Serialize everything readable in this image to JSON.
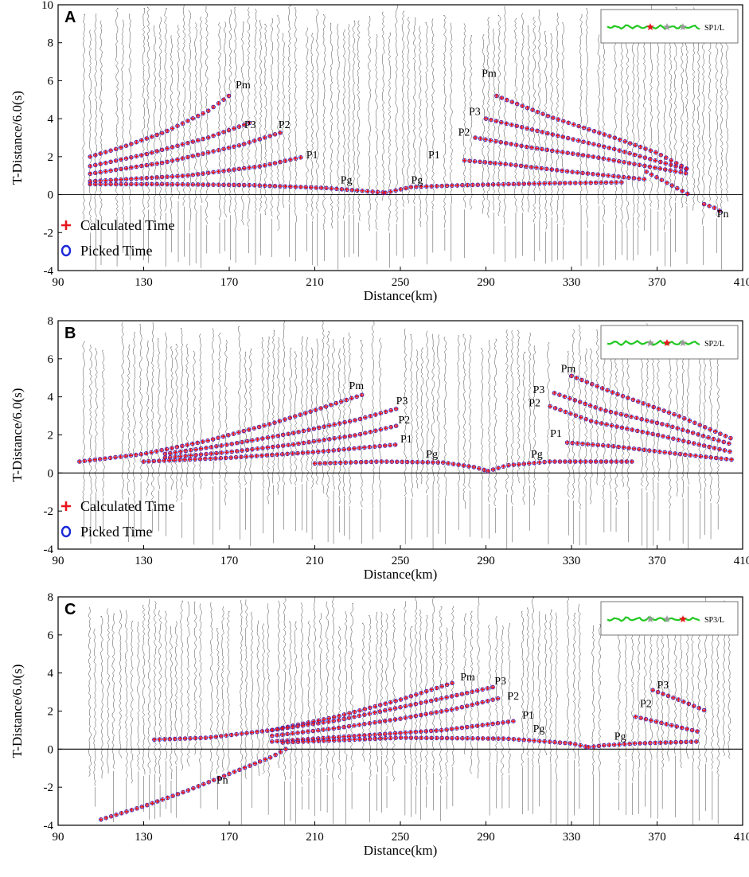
{
  "figure": {
    "colors": {
      "calculated": "#e8141c",
      "picked": "#1a28d8",
      "trace": "#333333",
      "inset_line": "#22c822",
      "star_gray": "#9a9a9a",
      "star_red": "#e8141c"
    }
  },
  "chart_data": [
    {
      "type": "scatter",
      "panel_label": "A",
      "xlabel": "Distance(km)",
      "ylabel": "T-Distance/6.0(s)",
      "xlim": [
        90,
        410
      ],
      "ylim": [
        -4,
        10
      ],
      "xticks": [
        90,
        130,
        170,
        210,
        250,
        290,
        330,
        370,
        410
      ],
      "yticks": [
        -4,
        -2,
        0,
        2,
        4,
        6,
        8,
        10
      ],
      "legend": {
        "calculated": "Calculated Time",
        "picked": "Picked Time",
        "position": "lower-left"
      },
      "inset": {
        "label": "SP1/L",
        "shot_index": 0
      },
      "shot_km": 243,
      "phase_curves": [
        {
          "name": "Pm",
          "x": [
            105,
            120,
            140,
            160,
            171
          ],
          "y": [
            2.0,
            2.5,
            3.3,
            4.4,
            5.3
          ]
        },
        {
          "name": "P3",
          "x": [
            105,
            130,
            160,
            180
          ],
          "y": [
            1.5,
            2.1,
            3.0,
            3.8
          ]
        },
        {
          "name": "P2",
          "x": [
            105,
            140,
            175,
            195
          ],
          "y": [
            1.1,
            1.7,
            2.6,
            3.3
          ]
        },
        {
          "name": "P1",
          "x": [
            105,
            150,
            185,
            205
          ],
          "y": [
            0.7,
            1.0,
            1.5,
            2.0
          ]
        },
        {
          "name": "Pg",
          "x": [
            105,
            140,
            180,
            215,
            232,
            243
          ],
          "y": [
            0.55,
            0.55,
            0.5,
            0.35,
            0.2,
            0.1
          ]
        },
        {
          "name": "Pg",
          "x": [
            243,
            255,
            280,
            320,
            355
          ],
          "y": [
            0.1,
            0.4,
            0.5,
            0.6,
            0.65
          ]
        },
        {
          "name": "P1",
          "x": [
            280,
            300,
            330,
            365
          ],
          "y": [
            1.8,
            1.6,
            1.2,
            0.8
          ]
        },
        {
          "name": "P2",
          "x": [
            285,
            310,
            340,
            365,
            385
          ],
          "y": [
            3.0,
            2.5,
            2.0,
            1.5,
            1.1
          ]
        },
        {
          "name": "P3",
          "x": [
            290,
            320,
            350,
            385
          ],
          "y": [
            4.0,
            3.2,
            2.4,
            1.3
          ]
        },
        {
          "name": "Pm",
          "x": [
            295,
            320,
            350,
            370,
            385
          ],
          "y": [
            5.2,
            4.1,
            3.0,
            2.2,
            1.3
          ]
        },
        {
          "name": "Pn",
          "x": [
            365,
            375,
            385
          ],
          "y": [
            1.2,
            0.6,
            0.0
          ]
        },
        {
          "name": "Pn",
          "x": [
            392,
            397,
            400
          ],
          "y": [
            -0.5,
            -0.7,
            -0.9
          ]
        }
      ],
      "phase_labels": [
        {
          "text": "Pm",
          "x": 173,
          "y": 5.6
        },
        {
          "text": "P3",
          "x": 177,
          "y": 3.5
        },
        {
          "text": "P2",
          "x": 193,
          "y": 3.5
        },
        {
          "text": "P1",
          "x": 206,
          "y": 1.9
        },
        {
          "text": "Pg",
          "x": 222,
          "y": 0.6
        },
        {
          "text": "Pg",
          "x": 255,
          "y": 0.6
        },
        {
          "text": "Pm",
          "x": 288,
          "y": 6.2
        },
        {
          "text": "P3",
          "x": 282,
          "y": 4.2
        },
        {
          "text": "P2",
          "x": 277,
          "y": 3.1
        },
        {
          "text": "P1",
          "x": 263,
          "y": 1.9
        },
        {
          "text": "Pn",
          "x": 398,
          "y": -1.2
        }
      ]
    },
    {
      "type": "scatter",
      "panel_label": "B",
      "xlabel": "Distance(km)",
      "ylabel": "T-Distance/6.0(s)",
      "xlim": [
        90,
        410
      ],
      "ylim": [
        -4,
        8
      ],
      "xticks": [
        90,
        130,
        170,
        210,
        250,
        290,
        330,
        370,
        410
      ],
      "yticks": [
        -4,
        -2,
        0,
        2,
        4,
        6,
        8
      ],
      "legend": {
        "calculated": "Calculated Time",
        "picked": "Picked Time",
        "position": "lower-left"
      },
      "inset": {
        "label": "SP2/L",
        "shot_index": 1
      },
      "shot_km": 291,
      "phase_curves": [
        {
          "name": "Pm",
          "x": [
            100,
            130,
            160,
            190,
            210,
            232
          ],
          "y": [
            0.6,
            1.0,
            1.7,
            2.6,
            3.3,
            4.1
          ]
        },
        {
          "name": "P3",
          "x": [
            140,
            170,
            200,
            230,
            249
          ],
          "y": [
            1.0,
            1.5,
            2.1,
            2.8,
            3.4
          ]
        },
        {
          "name": "P2",
          "x": [
            140,
            170,
            200,
            230,
            249
          ],
          "y": [
            0.8,
            1.1,
            1.5,
            2.0,
            2.5
          ]
        },
        {
          "name": "P1",
          "x": [
            130,
            170,
            210,
            249
          ],
          "y": [
            0.6,
            0.8,
            1.1,
            1.5
          ]
        },
        {
          "name": "Pg",
          "x": [
            210,
            240,
            270,
            285,
            291
          ],
          "y": [
            0.5,
            0.6,
            0.55,
            0.3,
            0.1
          ]
        },
        {
          "name": "Pg",
          "x": [
            291,
            300,
            320,
            360
          ],
          "y": [
            0.1,
            0.4,
            0.6,
            0.6
          ]
        },
        {
          "name": "P1",
          "x": [
            328,
            350,
            380,
            405
          ],
          "y": [
            1.6,
            1.4,
            1.0,
            0.7
          ]
        },
        {
          "name": "P2",
          "x": [
            320,
            340,
            370,
            405
          ],
          "y": [
            3.5,
            2.7,
            2.0,
            1.1
          ]
        },
        {
          "name": "P3",
          "x": [
            322,
            345,
            375,
            405
          ],
          "y": [
            4.2,
            3.3,
            2.5,
            1.5
          ]
        },
        {
          "name": "Pm",
          "x": [
            330,
            350,
            380,
            405
          ],
          "y": [
            5.1,
            4.2,
            3.0,
            1.8
          ]
        }
      ],
      "phase_labels": [
        {
          "text": "Pm",
          "x": 226,
          "y": 4.4
        },
        {
          "text": "P3",
          "x": 248,
          "y": 3.6
        },
        {
          "text": "P2",
          "x": 249,
          "y": 2.6
        },
        {
          "text": "P1",
          "x": 250,
          "y": 1.6
        },
        {
          "text": "Pg",
          "x": 262,
          "y": 0.8
        },
        {
          "text": "Pm",
          "x": 325,
          "y": 5.3
        },
        {
          "text": "P3",
          "x": 312,
          "y": 4.2
        },
        {
          "text": "P2",
          "x": 310,
          "y": 3.5
        },
        {
          "text": "P1",
          "x": 320,
          "y": 1.9
        },
        {
          "text": "Pg",
          "x": 311,
          "y": 0.8
        }
      ]
    },
    {
      "type": "scatter",
      "panel_label": "C",
      "xlabel": "Distance(km)",
      "ylabel": "T-Distance/6.0(s)",
      "xlim": [
        90,
        410
      ],
      "ylim": [
        -4,
        8
      ],
      "xticks": [
        90,
        130,
        170,
        210,
        250,
        290,
        330,
        370,
        410
      ],
      "yticks": [
        -4,
        -2,
        0,
        2,
        4,
        6,
        8
      ],
      "inset": {
        "label": "SP3/L",
        "shot_index": 2
      },
      "shot_km": 338,
      "phase_curves": [
        {
          "name": "Pn",
          "x": [
            110,
            130,
            150,
            170,
            190,
            198
          ],
          "y": [
            -3.7,
            -3.0,
            -2.2,
            -1.3,
            -0.4,
            0.1
          ]
        },
        {
          "name": "Pm",
          "x": [
            135,
            160,
            190,
            220,
            250,
            275
          ],
          "y": [
            0.5,
            0.6,
            1.0,
            1.7,
            2.6,
            3.5
          ]
        },
        {
          "name": "P3",
          "x": [
            190,
            220,
            250,
            275,
            295
          ],
          "y": [
            1.0,
            1.5,
            2.2,
            2.8,
            3.3
          ]
        },
        {
          "name": "P2",
          "x": [
            190,
            220,
            250,
            275,
            297
          ],
          "y": [
            0.7,
            1.1,
            1.6,
            2.1,
            2.7
          ]
        },
        {
          "name": "P1",
          "x": [
            190,
            230,
            270,
            305
          ],
          "y": [
            0.4,
            0.7,
            1.0,
            1.5
          ]
        },
        {
          "name": "Pg",
          "x": [
            195,
            250,
            300,
            330,
            338
          ],
          "y": [
            0.35,
            0.6,
            0.55,
            0.3,
            0.1
          ]
        },
        {
          "name": "Pg",
          "x": [
            338,
            345,
            360,
            390
          ],
          "y": [
            0.1,
            0.2,
            0.3,
            0.4
          ]
        },
        {
          "name": "P2",
          "x": [
            360,
            375,
            390
          ],
          "y": [
            1.7,
            1.3,
            0.9
          ]
        },
        {
          "name": "P3",
          "x": [
            368,
            380,
            393
          ],
          "y": [
            3.1,
            2.6,
            2.0
          ]
        }
      ],
      "phase_labels": [
        {
          "text": "Pm",
          "x": 278,
          "y": 3.6
        },
        {
          "text": "P3",
          "x": 294,
          "y": 3.4
        },
        {
          "text": "P2",
          "x": 300,
          "y": 2.6
        },
        {
          "text": "P1",
          "x": 307,
          "y": 1.6
        },
        {
          "text": "Pg",
          "x": 312,
          "y": 0.9
        },
        {
          "text": "Pg",
          "x": 350,
          "y": 0.5
        },
        {
          "text": "P2",
          "x": 362,
          "y": 2.2
        },
        {
          "text": "P3",
          "x": 370,
          "y": 3.2
        },
        {
          "text": "Pn",
          "x": 164,
          "y": -1.8
        }
      ]
    }
  ]
}
